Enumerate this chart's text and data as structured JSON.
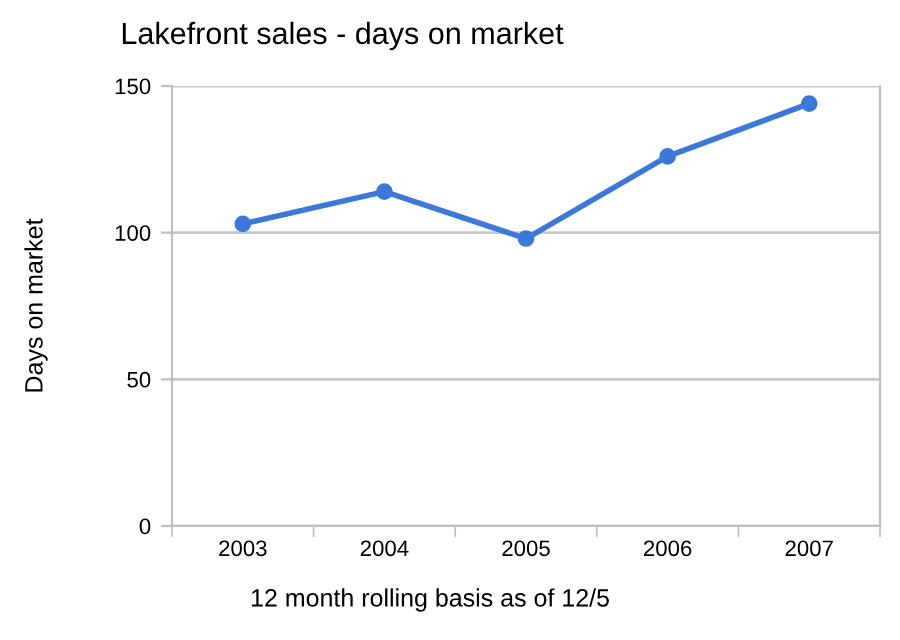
{
  "chart_data": {
    "type": "line",
    "title": "Lakefront sales - days on market",
    "xlabel": "12 month rolling basis as of 12/5",
    "ylabel": "Days on market",
    "categories": [
      "2003",
      "2004",
      "2005",
      "2006",
      "2007"
    ],
    "series": [
      {
        "color": "#3c78d8",
        "values": [
          103,
          114,
          98,
          126,
          144
        ]
      }
    ],
    "ylim": [
      0,
      150
    ],
    "yticks": [
      0,
      50,
      100,
      150
    ],
    "grid": "y",
    "marker": "circle",
    "line_style": "solid"
  }
}
